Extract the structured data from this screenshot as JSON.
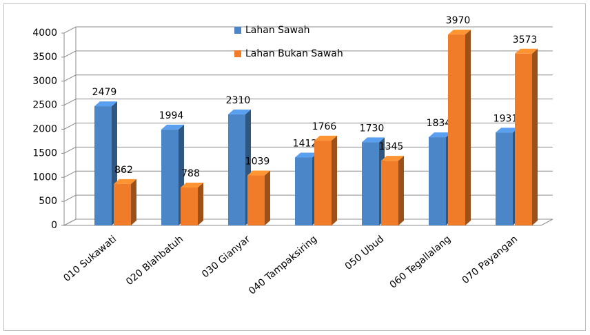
{
  "chart_data": {
    "type": "bar",
    "categories": [
      "010 Sukawati",
      "020 Blahbatuh",
      "030 Gianyar",
      "040 Tampaksiring",
      "050 Ubud",
      "060 Tegallalang",
      "070 Payangan"
    ],
    "series": [
      {
        "name": "Lahan Sawah",
        "color": "#4a86c8",
        "values": [
          2479,
          1994,
          2310,
          1412,
          1730,
          1834,
          1931
        ]
      },
      {
        "name": "Lahan Bukan Sawah",
        "color": "#f07c2a",
        "values": [
          862,
          788,
          1039,
          1766,
          1345,
          3970,
          3573
        ]
      }
    ],
    "ylim": [
      0,
      4000
    ],
    "yticks": [
      0,
      500,
      1000,
      1500,
      2000,
      2500,
      3000,
      3500,
      4000
    ],
    "grid": true,
    "legend": "top"
  }
}
